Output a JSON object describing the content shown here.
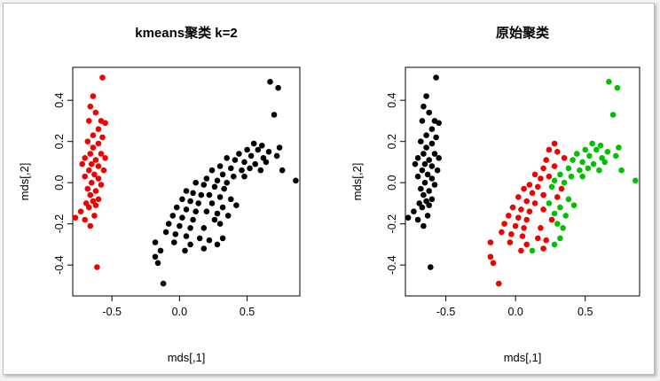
{
  "colors": {
    "red": "#f00000",
    "black": "#000000",
    "green": "#00c000"
  },
  "chart_data": [
    {
      "type": "scatter",
      "title": "kmeans聚类 k=2",
      "xlabel": "mds[,1]",
      "ylabel": "mds[,2]",
      "xlim": [
        -0.79,
        0.89
      ],
      "ylim": [
        -0.55,
        0.56
      ],
      "xticks": [
        -0.5,
        0.0,
        0.5
      ],
      "yticks": [
        -0.4,
        -0.2,
        0.0,
        0.2,
        0.4
      ],
      "series": [
        {
          "color": "red",
          "points": [
            [
              -0.57,
              0.51
            ],
            [
              -0.64,
              0.42
            ],
            [
              -0.66,
              0.37
            ],
            [
              -0.62,
              0.34
            ],
            [
              -0.67,
              0.3
            ],
            [
              -0.58,
              0.3
            ],
            [
              -0.55,
              0.29
            ],
            [
              -0.6,
              0.26
            ],
            [
              -0.64,
              0.23
            ],
            [
              -0.57,
              0.22
            ],
            [
              -0.68,
              0.2
            ],
            [
              -0.6,
              0.19
            ],
            [
              -0.64,
              0.17
            ],
            [
              -0.66,
              0.14
            ],
            [
              -0.58,
              0.14
            ],
            [
              -0.7,
              0.12
            ],
            [
              -0.62,
              0.11
            ],
            [
              -0.55,
              0.12
            ],
            [
              -0.65,
              0.09
            ],
            [
              -0.72,
              0.09
            ],
            [
              -0.6,
              0.08
            ],
            [
              -0.56,
              0.06
            ],
            [
              -0.67,
              0.06
            ],
            [
              -0.63,
              0.04
            ],
            [
              -0.7,
              0.03
            ],
            [
              -0.6,
              0.02
            ],
            [
              -0.65,
              0.0
            ],
            [
              -0.58,
              -0.01
            ],
            [
              -0.68,
              -0.03
            ],
            [
              -0.62,
              -0.04
            ],
            [
              -0.66,
              -0.06
            ],
            [
              -0.6,
              -0.08
            ],
            [
              -0.64,
              -0.09
            ],
            [
              -0.69,
              -0.1
            ],
            [
              -0.62,
              -0.11
            ],
            [
              -0.67,
              -0.12
            ],
            [
              -0.73,
              -0.14
            ],
            [
              -0.63,
              -0.16
            ],
            [
              -0.7,
              -0.18
            ],
            [
              -0.77,
              -0.17
            ],
            [
              -0.66,
              -0.21
            ],
            [
              -0.61,
              -0.41
            ]
          ]
        },
        {
          "color": "black",
          "points": [
            [
              0.67,
              0.49
            ],
            [
              0.73,
              0.46
            ],
            [
              0.7,
              0.33
            ],
            [
              0.55,
              0.19
            ],
            [
              0.61,
              0.18
            ],
            [
              0.74,
              0.17
            ],
            [
              0.5,
              0.16
            ],
            [
              0.58,
              0.16
            ],
            [
              0.66,
              0.15
            ],
            [
              0.44,
              0.14
            ],
            [
              0.53,
              0.13
            ],
            [
              0.62,
              0.12
            ],
            [
              0.72,
              0.13
            ],
            [
              0.35,
              0.12
            ],
            [
              0.41,
              0.11
            ],
            [
              0.48,
              0.1
            ],
            [
              0.56,
              0.09
            ],
            [
              0.64,
              0.1
            ],
            [
              0.3,
              0.08
            ],
            [
              0.38,
              0.07
            ],
            [
              0.46,
              0.06
            ],
            [
              0.52,
              0.07
            ],
            [
              0.6,
              0.06
            ],
            [
              0.76,
              0.06
            ],
            [
              0.24,
              0.06
            ],
            [
              0.32,
              0.04
            ],
            [
              0.4,
              0.03
            ],
            [
              0.48,
              0.03
            ],
            [
              0.2,
              0.02
            ],
            [
              0.28,
              0.01
            ],
            [
              0.35,
              0.0
            ],
            [
              0.86,
              0.01
            ],
            [
              0.12,
              0.0
            ],
            [
              0.18,
              -0.01
            ],
            [
              0.26,
              -0.02
            ],
            [
              0.33,
              -0.03
            ],
            [
              0.05,
              -0.04
            ],
            [
              0.1,
              -0.05
            ],
            [
              0.16,
              -0.06
            ],
            [
              0.22,
              -0.06
            ],
            [
              0.3,
              -0.07
            ],
            [
              0.38,
              -0.08
            ],
            [
              0.02,
              -0.08
            ],
            [
              0.08,
              -0.09
            ],
            [
              0.14,
              -0.1
            ],
            [
              0.24,
              -0.1
            ],
            [
              0.32,
              -0.12
            ],
            [
              0.42,
              -0.11
            ],
            [
              -0.02,
              -0.12
            ],
            [
              0.05,
              -0.13
            ],
            [
              0.12,
              -0.14
            ],
            [
              0.2,
              -0.14
            ],
            [
              0.28,
              -0.15
            ],
            [
              0.36,
              -0.16
            ],
            [
              -0.05,
              -0.16
            ],
            [
              0.02,
              -0.17
            ],
            [
              0.1,
              -0.18
            ],
            [
              0.26,
              -0.18
            ],
            [
              -0.08,
              -0.2
            ],
            [
              0.0,
              -0.21
            ],
            [
              0.08,
              -0.22
            ],
            [
              0.18,
              -0.22
            ],
            [
              0.3,
              -0.2
            ],
            [
              -0.1,
              -0.24
            ],
            [
              -0.03,
              -0.25
            ],
            [
              0.05,
              -0.26
            ],
            [
              0.15,
              -0.27
            ],
            [
              0.22,
              -0.28
            ],
            [
              -0.18,
              -0.29
            ],
            [
              -0.04,
              -0.29
            ],
            [
              0.08,
              -0.3
            ],
            [
              0.28,
              -0.3
            ],
            [
              0.32,
              -0.27
            ],
            [
              -0.14,
              -0.33
            ],
            [
              0.04,
              -0.33
            ],
            [
              0.18,
              -0.32
            ],
            [
              -0.18,
              -0.36
            ],
            [
              -0.16,
              -0.39
            ],
            [
              -0.12,
              -0.49
            ]
          ]
        }
      ]
    },
    {
      "type": "scatter",
      "title": "原始聚类",
      "xlabel": "mds[,1]",
      "ylabel": "mds[,2]",
      "xlim": [
        -0.79,
        0.89
      ],
      "ylim": [
        -0.55,
        0.56
      ],
      "xticks": [
        -0.5,
        0.0,
        0.5
      ],
      "yticks": [
        -0.4,
        -0.2,
        0.0,
        0.2,
        0.4
      ],
      "series": [
        {
          "color": "black",
          "points": [
            [
              -0.57,
              0.51
            ],
            [
              -0.64,
              0.42
            ],
            [
              -0.66,
              0.37
            ],
            [
              -0.62,
              0.34
            ],
            [
              -0.67,
              0.3
            ],
            [
              -0.58,
              0.3
            ],
            [
              -0.55,
              0.29
            ],
            [
              -0.6,
              0.26
            ],
            [
              -0.64,
              0.23
            ],
            [
              -0.57,
              0.22
            ],
            [
              -0.68,
              0.2
            ],
            [
              -0.6,
              0.19
            ],
            [
              -0.64,
              0.17
            ],
            [
              -0.66,
              0.14
            ],
            [
              -0.58,
              0.14
            ],
            [
              -0.7,
              0.12
            ],
            [
              -0.62,
              0.11
            ],
            [
              -0.55,
              0.12
            ],
            [
              -0.65,
              0.09
            ],
            [
              -0.72,
              0.09
            ],
            [
              -0.6,
              0.08
            ],
            [
              -0.56,
              0.06
            ],
            [
              -0.67,
              0.06
            ],
            [
              -0.63,
              0.04
            ],
            [
              -0.7,
              0.03
            ],
            [
              -0.6,
              0.02
            ],
            [
              -0.65,
              0.0
            ],
            [
              -0.58,
              -0.01
            ],
            [
              -0.68,
              -0.03
            ],
            [
              -0.62,
              -0.04
            ],
            [
              -0.66,
              -0.06
            ],
            [
              -0.6,
              -0.08
            ],
            [
              -0.64,
              -0.09
            ],
            [
              -0.69,
              -0.1
            ],
            [
              -0.62,
              -0.11
            ],
            [
              -0.67,
              -0.12
            ],
            [
              -0.73,
              -0.14
            ],
            [
              -0.63,
              -0.16
            ],
            [
              -0.7,
              -0.18
            ],
            [
              -0.77,
              -0.17
            ],
            [
              -0.66,
              -0.21
            ],
            [
              -0.61,
              -0.41
            ]
          ]
        },
        {
          "color": "red",
          "points": [
            [
              0.28,
              0.19
            ],
            [
              0.24,
              0.16
            ],
            [
              0.3,
              0.15
            ],
            [
              0.35,
              0.12
            ],
            [
              0.22,
              0.11
            ],
            [
              0.28,
              0.08
            ],
            [
              0.2,
              0.07
            ],
            [
              0.14,
              0.04
            ],
            [
              0.24,
              0.03
            ],
            [
              0.18,
              0.02
            ],
            [
              0.1,
              -0.01
            ],
            [
              0.16,
              -0.02
            ],
            [
              0.06,
              -0.03
            ],
            [
              0.12,
              -0.05
            ],
            [
              0.2,
              -0.06
            ],
            [
              0.02,
              -0.07
            ],
            [
              0.08,
              -0.09
            ],
            [
              0.14,
              -0.1
            ],
            [
              -0.02,
              -0.12
            ],
            [
              0.04,
              -0.13
            ],
            [
              0.1,
              -0.14
            ],
            [
              0.2,
              -0.13
            ],
            [
              -0.05,
              -0.16
            ],
            [
              0.02,
              -0.17
            ],
            [
              0.08,
              -0.18
            ],
            [
              0.26,
              -0.18
            ],
            [
              -0.08,
              -0.2
            ],
            [
              0.0,
              -0.21
            ],
            [
              0.06,
              -0.22
            ],
            [
              0.18,
              -0.22
            ],
            [
              -0.1,
              -0.24
            ],
            [
              -0.03,
              -0.25
            ],
            [
              0.05,
              -0.26
            ],
            [
              0.16,
              -0.27
            ],
            [
              0.22,
              -0.28
            ],
            [
              -0.18,
              -0.29
            ],
            [
              -0.04,
              -0.29
            ],
            [
              0.08,
              -0.3
            ],
            [
              0.04,
              -0.33
            ],
            [
              0.2,
              -0.32
            ],
            [
              -0.18,
              -0.36
            ],
            [
              -0.16,
              -0.39
            ],
            [
              -0.12,
              -0.49
            ],
            [
              0.33,
              -0.03
            ],
            [
              0.3,
              -0.07
            ]
          ]
        },
        {
          "color": "green",
          "points": [
            [
              0.67,
              0.49
            ],
            [
              0.73,
              0.46
            ],
            [
              0.7,
              0.33
            ],
            [
              0.55,
              0.19
            ],
            [
              0.61,
              0.18
            ],
            [
              0.74,
              0.17
            ],
            [
              0.5,
              0.16
            ],
            [
              0.58,
              0.16
            ],
            [
              0.66,
              0.15
            ],
            [
              0.44,
              0.14
            ],
            [
              0.53,
              0.13
            ],
            [
              0.62,
              0.12
            ],
            [
              0.72,
              0.13
            ],
            [
              0.41,
              0.11
            ],
            [
              0.48,
              0.1
            ],
            [
              0.56,
              0.09
            ],
            [
              0.64,
              0.1
            ],
            [
              0.38,
              0.07
            ],
            [
              0.46,
              0.06
            ],
            [
              0.52,
              0.07
            ],
            [
              0.6,
              0.06
            ],
            [
              0.76,
              0.06
            ],
            [
              0.32,
              0.04
            ],
            [
              0.4,
              0.03
            ],
            [
              0.48,
              0.03
            ],
            [
              0.35,
              0.0
            ],
            [
              0.86,
              0.01
            ],
            [
              0.28,
              0.01
            ],
            [
              0.38,
              -0.08
            ],
            [
              0.42,
              -0.11
            ],
            [
              0.32,
              -0.12
            ],
            [
              0.36,
              -0.16
            ],
            [
              0.3,
              -0.2
            ],
            [
              0.28,
              -0.15
            ],
            [
              0.24,
              -0.1
            ],
            [
              0.32,
              -0.27
            ],
            [
              0.28,
              -0.3
            ],
            [
              0.12,
              -0.33
            ],
            [
              0.34,
              -0.22
            ],
            [
              0.26,
              -0.02
            ]
          ]
        }
      ]
    }
  ]
}
